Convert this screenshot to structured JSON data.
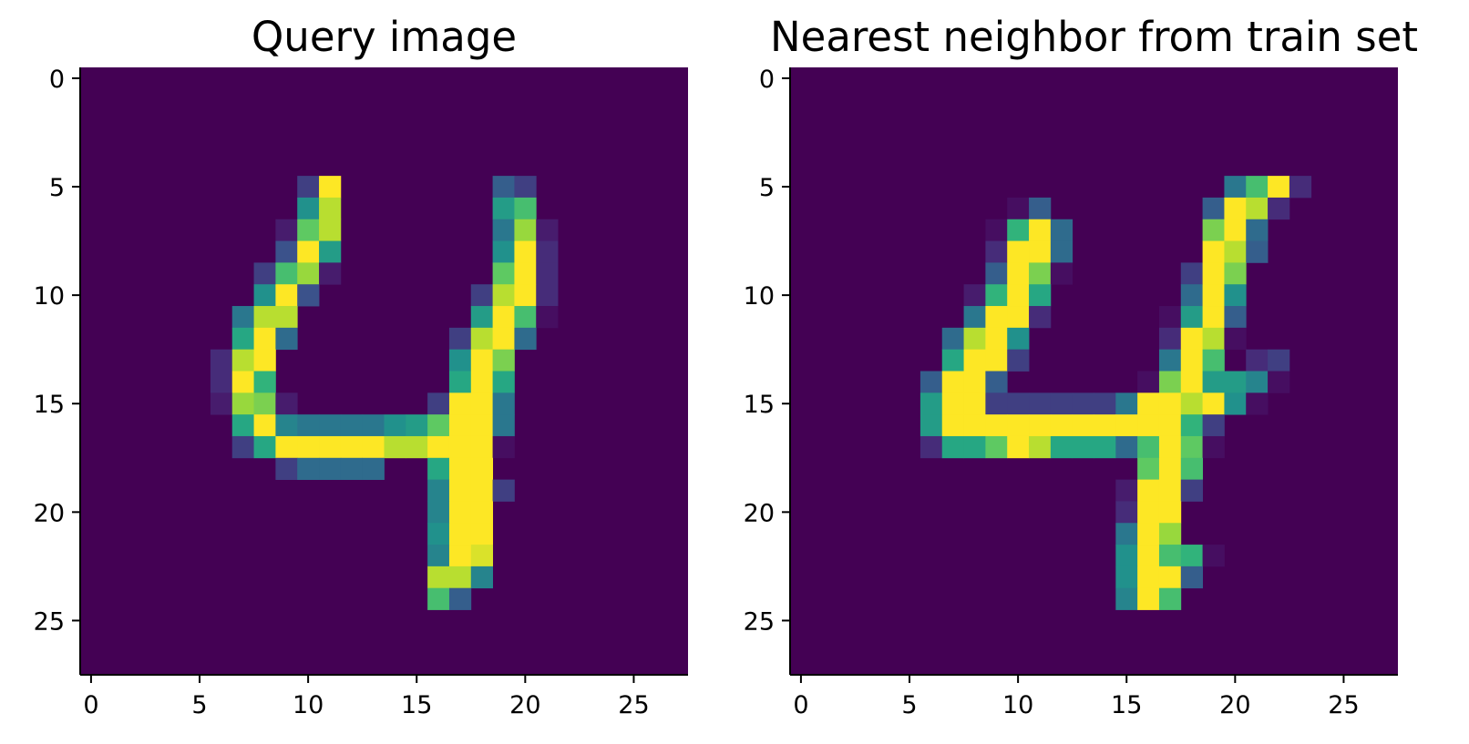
{
  "chart_data": [
    {
      "type": "heatmap",
      "title": "Query image",
      "colormap": "viridis",
      "xlabel": "",
      "ylabel": "",
      "xlim": [
        -0.5,
        27.5
      ],
      "ylim": [
        27.5,
        -0.5
      ],
      "xticks": [
        0,
        5,
        10,
        15,
        20,
        25
      ],
      "yticks": [
        0,
        5,
        10,
        15,
        20,
        25
      ],
      "xtick_labels": [
        "0",
        "5",
        "10",
        "15",
        "20",
        "25"
      ],
      "ytick_labels": [
        "0",
        "5",
        "10",
        "15",
        "20",
        "25"
      ],
      "rows": 28,
      "cols": 28,
      "cells": [
        [
          5,
          10,
          0.2
        ],
        [
          5,
          11,
          1.0
        ],
        [
          5,
          19,
          0.3
        ],
        [
          5,
          20,
          0.2
        ],
        [
          6,
          10,
          0.5
        ],
        [
          6,
          11,
          0.9
        ],
        [
          6,
          19,
          0.55
        ],
        [
          6,
          20,
          0.7
        ],
        [
          7,
          9,
          0.1
        ],
        [
          7,
          10,
          0.75
        ],
        [
          7,
          11,
          0.9
        ],
        [
          7,
          19,
          0.4
        ],
        [
          7,
          20,
          0.85
        ],
        [
          7,
          21,
          0.1
        ],
        [
          8,
          9,
          0.25
        ],
        [
          8,
          10,
          1.0
        ],
        [
          8,
          11,
          0.55
        ],
        [
          8,
          19,
          0.5
        ],
        [
          8,
          20,
          1.0
        ],
        [
          8,
          21,
          0.15
        ],
        [
          9,
          8,
          0.2
        ],
        [
          9,
          9,
          0.7
        ],
        [
          9,
          10,
          0.85
        ],
        [
          9,
          11,
          0.1
        ],
        [
          9,
          19,
          0.75
        ],
        [
          9,
          20,
          1.0
        ],
        [
          9,
          21,
          0.15
        ],
        [
          10,
          8,
          0.5
        ],
        [
          10,
          9,
          1.0
        ],
        [
          10,
          10,
          0.25
        ],
        [
          10,
          18,
          0.2
        ],
        [
          10,
          19,
          0.9
        ],
        [
          10,
          20,
          1.0
        ],
        [
          10,
          21,
          0.15
        ],
        [
          11,
          7,
          0.4
        ],
        [
          11,
          8,
          0.9
        ],
        [
          11,
          9,
          0.9
        ],
        [
          11,
          18,
          0.55
        ],
        [
          11,
          19,
          1.0
        ],
        [
          11,
          20,
          0.7
        ],
        [
          11,
          21,
          0.05
        ],
        [
          12,
          7,
          0.6
        ],
        [
          12,
          8,
          1.0
        ],
        [
          12,
          9,
          0.35
        ],
        [
          12,
          17,
          0.2
        ],
        [
          12,
          18,
          0.9
        ],
        [
          12,
          19,
          1.0
        ],
        [
          12,
          20,
          0.35
        ],
        [
          13,
          6,
          0.15
        ],
        [
          13,
          7,
          0.9
        ],
        [
          13,
          8,
          1.0
        ],
        [
          13,
          17,
          0.5
        ],
        [
          13,
          18,
          1.0
        ],
        [
          13,
          19,
          0.8
        ],
        [
          14,
          6,
          0.15
        ],
        [
          14,
          7,
          1.0
        ],
        [
          14,
          8,
          0.65
        ],
        [
          14,
          17,
          0.6
        ],
        [
          14,
          18,
          1.0
        ],
        [
          14,
          19,
          0.6
        ],
        [
          15,
          6,
          0.1
        ],
        [
          15,
          7,
          0.85
        ],
        [
          15,
          8,
          0.8
        ],
        [
          15,
          9,
          0.1
        ],
        [
          15,
          16,
          0.2
        ],
        [
          15,
          17,
          1.0
        ],
        [
          15,
          18,
          1.0
        ],
        [
          15,
          19,
          0.4
        ],
        [
          16,
          7,
          0.6
        ],
        [
          16,
          8,
          1.0
        ],
        [
          16,
          9,
          0.45
        ],
        [
          16,
          10,
          0.4
        ],
        [
          16,
          11,
          0.4
        ],
        [
          16,
          12,
          0.4
        ],
        [
          16,
          13,
          0.4
        ],
        [
          16,
          14,
          0.5
        ],
        [
          16,
          15,
          0.55
        ],
        [
          16,
          16,
          0.75
        ],
        [
          16,
          17,
          1.0
        ],
        [
          16,
          18,
          1.0
        ],
        [
          16,
          19,
          0.4
        ],
        [
          17,
          7,
          0.2
        ],
        [
          17,
          8,
          0.6
        ],
        [
          17,
          9,
          1.0
        ],
        [
          17,
          10,
          1.0
        ],
        [
          17,
          11,
          1.0
        ],
        [
          17,
          12,
          1.0
        ],
        [
          17,
          13,
          1.0
        ],
        [
          17,
          14,
          0.9
        ],
        [
          17,
          15,
          0.9
        ],
        [
          17,
          16,
          1.0
        ],
        [
          17,
          17,
          1.0
        ],
        [
          17,
          18,
          1.0
        ],
        [
          17,
          19,
          0.05
        ],
        [
          18,
          9,
          0.2
        ],
        [
          18,
          10,
          0.35
        ],
        [
          18,
          11,
          0.35
        ],
        [
          18,
          12,
          0.35
        ],
        [
          18,
          13,
          0.35
        ],
        [
          18,
          16,
          0.6
        ],
        [
          18,
          17,
          1.0
        ],
        [
          18,
          18,
          1.0
        ],
        [
          19,
          16,
          0.45
        ],
        [
          19,
          17,
          1.0
        ],
        [
          19,
          18,
          1.0
        ],
        [
          19,
          19,
          0.2
        ],
        [
          20,
          16,
          0.45
        ],
        [
          20,
          17,
          1.0
        ],
        [
          20,
          18,
          1.0
        ],
        [
          21,
          16,
          0.5
        ],
        [
          21,
          17,
          1.0
        ],
        [
          21,
          18,
          1.0
        ],
        [
          22,
          16,
          0.45
        ],
        [
          22,
          17,
          1.0
        ],
        [
          22,
          18,
          0.95
        ],
        [
          23,
          16,
          0.9
        ],
        [
          23,
          17,
          0.9
        ],
        [
          23,
          18,
          0.45
        ],
        [
          24,
          16,
          0.7
        ],
        [
          24,
          17,
          0.3
        ]
      ]
    },
    {
      "type": "heatmap",
      "title": "Nearest neighbor from train set",
      "colormap": "viridis",
      "xlabel": "",
      "ylabel": "",
      "xlim": [
        -0.5,
        27.5
      ],
      "ylim": [
        27.5,
        -0.5
      ],
      "xticks": [
        0,
        5,
        10,
        15,
        20,
        25
      ],
      "yticks": [
        0,
        5,
        10,
        15,
        20,
        25
      ],
      "xtick_labels": [
        "0",
        "5",
        "10",
        "15",
        "20",
        "25"
      ],
      "ytick_labels": [
        "0",
        "5",
        "10",
        "15",
        "20",
        "25"
      ],
      "rows": 28,
      "cols": 28,
      "cells": [
        [
          5,
          20,
          0.4
        ],
        [
          5,
          21,
          0.7
        ],
        [
          5,
          22,
          1.0
        ],
        [
          5,
          23,
          0.15
        ],
        [
          6,
          10,
          0.05
        ],
        [
          6,
          11,
          0.3
        ],
        [
          6,
          19,
          0.3
        ],
        [
          6,
          20,
          1.0
        ],
        [
          6,
          21,
          0.9
        ],
        [
          6,
          22,
          0.15
        ],
        [
          7,
          9,
          0.05
        ],
        [
          7,
          10,
          0.65
        ],
        [
          7,
          11,
          1.0
        ],
        [
          7,
          12,
          0.35
        ],
        [
          7,
          19,
          0.8
        ],
        [
          7,
          20,
          1.0
        ],
        [
          7,
          21,
          0.35
        ],
        [
          8,
          9,
          0.15
        ],
        [
          8,
          10,
          1.0
        ],
        [
          8,
          11,
          1.0
        ],
        [
          8,
          12,
          0.35
        ],
        [
          8,
          19,
          1.0
        ],
        [
          8,
          20,
          0.9
        ],
        [
          8,
          21,
          0.3
        ],
        [
          9,
          9,
          0.3
        ],
        [
          9,
          10,
          1.0
        ],
        [
          9,
          11,
          0.8
        ],
        [
          9,
          12,
          0.05
        ],
        [
          9,
          18,
          0.2
        ],
        [
          9,
          19,
          1.0
        ],
        [
          9,
          20,
          0.8
        ],
        [
          10,
          8,
          0.1
        ],
        [
          10,
          9,
          0.65
        ],
        [
          10,
          10,
          1.0
        ],
        [
          10,
          11,
          0.6
        ],
        [
          10,
          18,
          0.35
        ],
        [
          10,
          19,
          1.0
        ],
        [
          10,
          20,
          0.5
        ],
        [
          11,
          8,
          0.4
        ],
        [
          11,
          9,
          1.0
        ],
        [
          11,
          10,
          1.0
        ],
        [
          11,
          11,
          0.15
        ],
        [
          11,
          17,
          0.05
        ],
        [
          11,
          18,
          0.55
        ],
        [
          11,
          19,
          1.0
        ],
        [
          11,
          20,
          0.3
        ],
        [
          12,
          7,
          0.35
        ],
        [
          12,
          8,
          0.9
        ],
        [
          12,
          9,
          1.0
        ],
        [
          12,
          10,
          0.5
        ],
        [
          12,
          17,
          0.15
        ],
        [
          12,
          18,
          1.0
        ],
        [
          12,
          19,
          0.9
        ],
        [
          12,
          20,
          0.05
        ],
        [
          13,
          7,
          0.6
        ],
        [
          13,
          8,
          1.0
        ],
        [
          13,
          9,
          1.0
        ],
        [
          13,
          10,
          0.2
        ],
        [
          13,
          17,
          0.4
        ],
        [
          13,
          18,
          1.0
        ],
        [
          13,
          19,
          0.7
        ],
        [
          13,
          21,
          0.15
        ],
        [
          13,
          22,
          0.2
        ],
        [
          14,
          6,
          0.3
        ],
        [
          14,
          7,
          1.0
        ],
        [
          14,
          8,
          1.0
        ],
        [
          14,
          9,
          0.3
        ],
        [
          14,
          16,
          0.05
        ],
        [
          14,
          17,
          0.8
        ],
        [
          14,
          18,
          1.0
        ],
        [
          14,
          19,
          0.55
        ],
        [
          14,
          20,
          0.55
        ],
        [
          14,
          21,
          0.45
        ],
        [
          14,
          22,
          0.05
        ],
        [
          15,
          6,
          0.55
        ],
        [
          15,
          7,
          1.0
        ],
        [
          15,
          8,
          1.0
        ],
        [
          15,
          9,
          0.2
        ],
        [
          15,
          10,
          0.2
        ],
        [
          15,
          11,
          0.2
        ],
        [
          15,
          12,
          0.2
        ],
        [
          15,
          13,
          0.2
        ],
        [
          15,
          14,
          0.2
        ],
        [
          15,
          15,
          0.4
        ],
        [
          15,
          16,
          1.0
        ],
        [
          15,
          17,
          1.0
        ],
        [
          15,
          18,
          0.9
        ],
        [
          15,
          19,
          1.0
        ],
        [
          15,
          20,
          0.5
        ],
        [
          15,
          21,
          0.05
        ],
        [
          16,
          6,
          0.55
        ],
        [
          16,
          7,
          1.0
        ],
        [
          16,
          8,
          1.0
        ],
        [
          16,
          9,
          1.0
        ],
        [
          16,
          10,
          1.0
        ],
        [
          16,
          11,
          1.0
        ],
        [
          16,
          12,
          1.0
        ],
        [
          16,
          13,
          1.0
        ],
        [
          16,
          14,
          1.0
        ],
        [
          16,
          15,
          1.0
        ],
        [
          16,
          16,
          1.0
        ],
        [
          16,
          17,
          1.0
        ],
        [
          16,
          18,
          0.65
        ],
        [
          16,
          19,
          0.2
        ],
        [
          17,
          6,
          0.15
        ],
        [
          17,
          7,
          0.6
        ],
        [
          17,
          8,
          0.6
        ],
        [
          17,
          9,
          0.75
        ],
        [
          17,
          10,
          1.0
        ],
        [
          17,
          11,
          0.9
        ],
        [
          17,
          12,
          0.6
        ],
        [
          17,
          13,
          0.6
        ],
        [
          17,
          14,
          0.6
        ],
        [
          17,
          15,
          0.35
        ],
        [
          17,
          16,
          0.7
        ],
        [
          17,
          17,
          1.0
        ],
        [
          17,
          18,
          0.75
        ],
        [
          17,
          19,
          0.05
        ],
        [
          18,
          16,
          0.75
        ],
        [
          18,
          17,
          1.0
        ],
        [
          18,
          18,
          0.7
        ],
        [
          19,
          15,
          0.1
        ],
        [
          19,
          16,
          1.0
        ],
        [
          19,
          17,
          1.0
        ],
        [
          19,
          18,
          0.2
        ],
        [
          20,
          15,
          0.15
        ],
        [
          20,
          16,
          1.0
        ],
        [
          20,
          17,
          1.0
        ],
        [
          21,
          15,
          0.4
        ],
        [
          21,
          16,
          1.0
        ],
        [
          21,
          17,
          0.85
        ],
        [
          22,
          15,
          0.5
        ],
        [
          22,
          16,
          1.0
        ],
        [
          22,
          17,
          0.7
        ],
        [
          22,
          18,
          0.65
        ],
        [
          22,
          19,
          0.05
        ],
        [
          23,
          15,
          0.5
        ],
        [
          23,
          16,
          1.0
        ],
        [
          23,
          17,
          1.0
        ],
        [
          23,
          18,
          0.3
        ],
        [
          24,
          15,
          0.45
        ],
        [
          24,
          16,
          1.0
        ],
        [
          24,
          17,
          0.7
        ]
      ]
    }
  ]
}
